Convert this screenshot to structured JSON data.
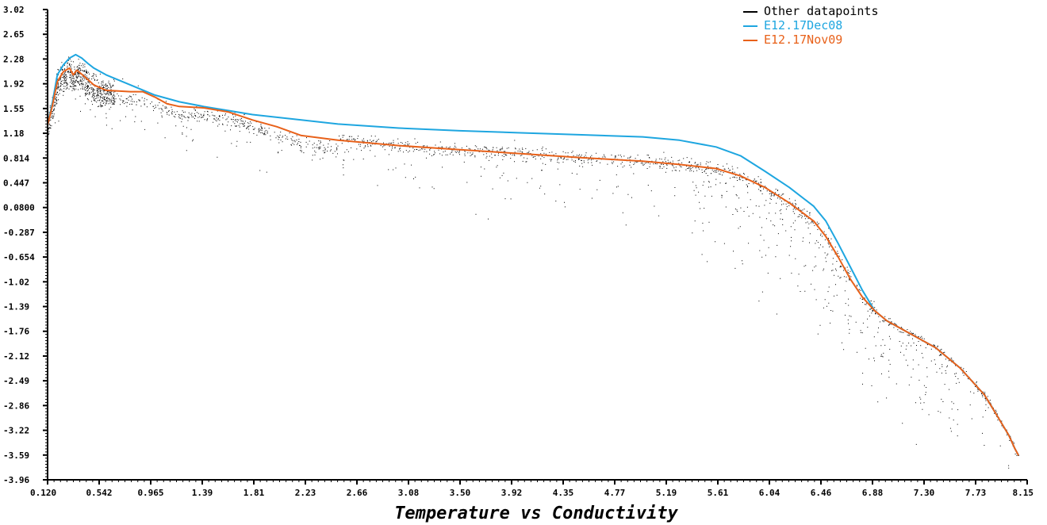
{
  "chart_data": {
    "type": "scatter",
    "title": "",
    "xlabel": "Temperature vs Conductivity",
    "ylabel": "",
    "xlim": [
      0.12,
      8.15
    ],
    "ylim": [
      -3.96,
      3.02
    ],
    "x_ticks": [
      "0.120",
      "0.542",
      "0.965",
      "1.39",
      "1.81",
      "2.23",
      "2.66",
      "3.08",
      "3.50",
      "3.92",
      "4.35",
      "4.77",
      "5.19",
      "5.61",
      "6.04",
      "6.46",
      "6.88",
      "7.30",
      "7.73",
      "8.15"
    ],
    "y_ticks": [
      "3.02",
      "2.65",
      "2.28",
      "1.92",
      "1.55",
      "1.18",
      "0.814",
      "0.447",
      "0.0800",
      "-0.287",
      "-0.654",
      "-1.02",
      "-1.39",
      "-1.76",
      "-2.12",
      "-2.49",
      "-2.86",
      "-3.22",
      "-3.59",
      "-3.96"
    ],
    "grid": false,
    "legend_position": "top-right",
    "series": [
      {
        "name": "Other datapoints",
        "kind": "scatter",
        "color": "#000000"
      },
      {
        "name": "E12.17Dec08",
        "kind": "line",
        "color": "#1ea6e0",
        "x": [
          0.12,
          0.16,
          0.2,
          0.25,
          0.3,
          0.35,
          0.4,
          0.45,
          0.5,
          0.6,
          0.8,
          1.0,
          1.2,
          1.4,
          1.6,
          1.8,
          2.0,
          2.2,
          2.5,
          3.0,
          3.5,
          4.0,
          4.5,
          5.0,
          5.3,
          5.6,
          5.8,
          6.0,
          6.2,
          6.4,
          6.5,
          6.6,
          6.7,
          6.8,
          6.9,
          7.0,
          7.2,
          7.4,
          7.6,
          7.8,
          7.9,
          8.0,
          8.05,
          8.08
        ],
        "y": [
          1.3,
          1.65,
          2.05,
          2.2,
          2.3,
          2.35,
          2.3,
          2.22,
          2.15,
          2.05,
          1.9,
          1.75,
          1.65,
          1.58,
          1.52,
          1.46,
          1.42,
          1.38,
          1.32,
          1.26,
          1.22,
          1.19,
          1.16,
          1.13,
          1.08,
          0.98,
          0.85,
          0.62,
          0.38,
          0.1,
          -0.12,
          -0.45,
          -0.8,
          -1.15,
          -1.45,
          -1.6,
          -1.8,
          -2.0,
          -2.3,
          -2.7,
          -3.0,
          -3.3,
          -3.5,
          -3.6
        ]
      },
      {
        "name": "E12.17Nov09",
        "kind": "line",
        "color": "#e8611a",
        "x": [
          0.12,
          0.16,
          0.2,
          0.25,
          0.3,
          0.33,
          0.36,
          0.4,
          0.45,
          0.5,
          0.6,
          0.8,
          0.9,
          1.0,
          1.1,
          1.2,
          1.4,
          1.6,
          1.8,
          2.0,
          2.2,
          2.5,
          3.0,
          3.5,
          4.0,
          4.5,
          5.0,
          5.3,
          5.6,
          5.8,
          6.0,
          6.2,
          6.4,
          6.5,
          6.6,
          6.7,
          6.8,
          6.9,
          7.0,
          7.2,
          7.4,
          7.6,
          7.8,
          7.9,
          8.0,
          8.05,
          8.08
        ],
        "y": [
          1.3,
          1.6,
          1.95,
          2.1,
          2.15,
          2.05,
          2.12,
          2.06,
          1.98,
          1.9,
          1.82,
          1.8,
          1.8,
          1.72,
          1.62,
          1.58,
          1.56,
          1.5,
          1.38,
          1.28,
          1.15,
          1.08,
          1.0,
          0.94,
          0.88,
          0.82,
          0.77,
          0.72,
          0.66,
          0.55,
          0.38,
          0.15,
          -0.12,
          -0.35,
          -0.65,
          -0.98,
          -1.25,
          -1.45,
          -1.6,
          -1.8,
          -2.0,
          -2.3,
          -2.7,
          -3.0,
          -3.3,
          -3.5,
          -3.6
        ]
      }
    ]
  }
}
